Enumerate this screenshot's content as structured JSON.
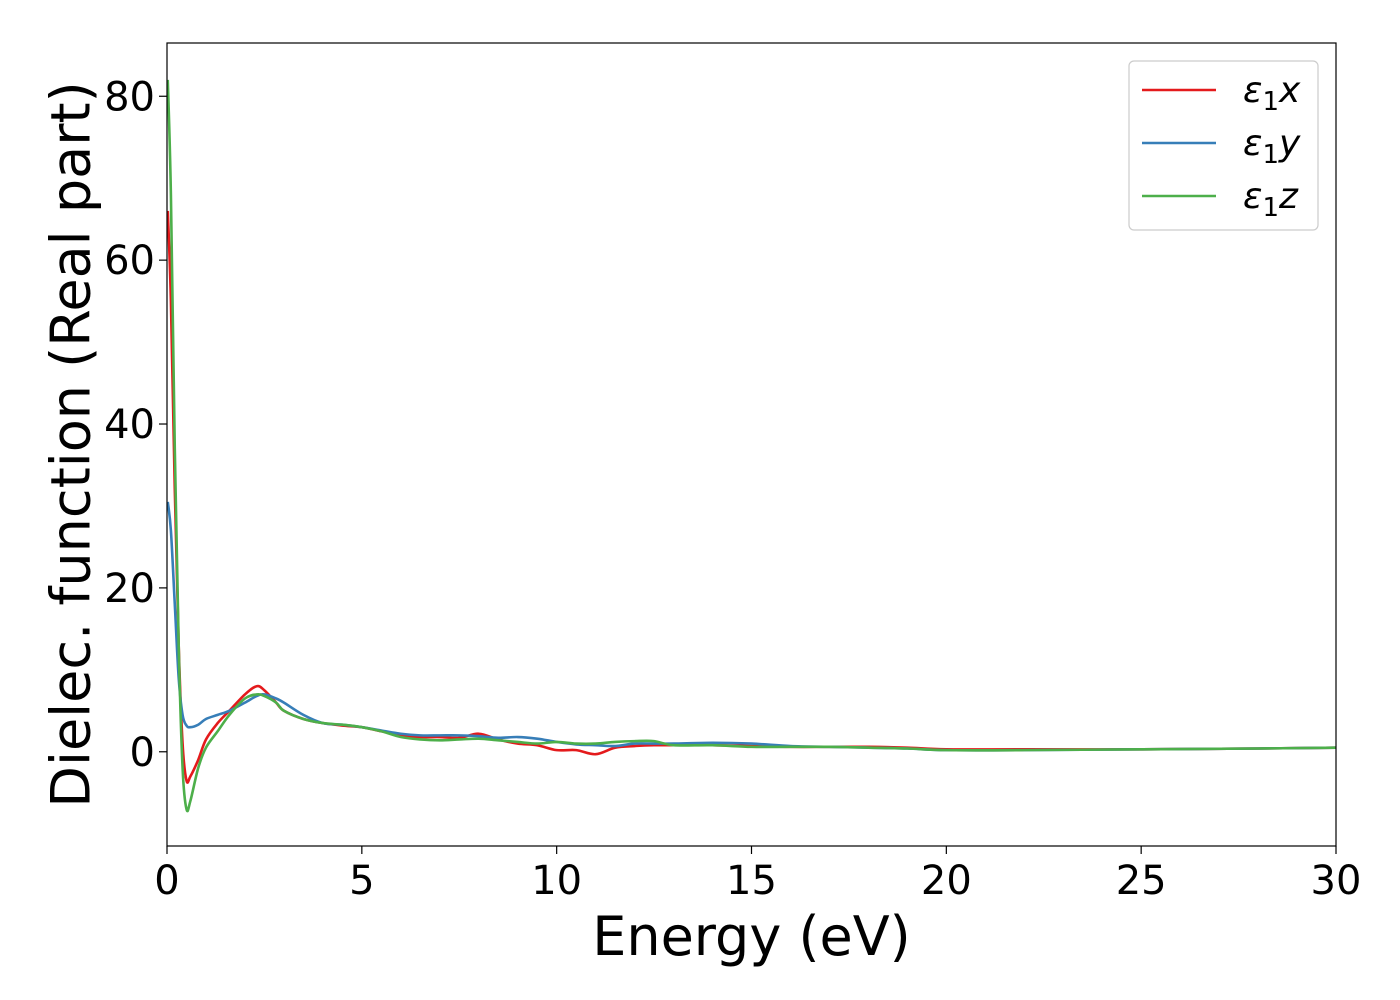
{
  "chart_data": {
    "type": "line",
    "xlabel": "Energy (eV)",
    "ylabel": "Dielec. function (Real part)",
    "xlim": [
      0,
      30
    ],
    "ylim": [
      -11.5,
      86.5
    ],
    "xticks": [
      0,
      5,
      10,
      15,
      20,
      25,
      30
    ],
    "yticks": [
      0,
      20,
      40,
      60,
      80
    ],
    "grid": false,
    "legend_position": "top-right",
    "series": [
      {
        "name": "ε₁x",
        "legend": {
          "symbol": "ε",
          "sub": "1",
          "axis": "x"
        },
        "color": "#e41a1c",
        "x": [
          0.02,
          0.1,
          0.2,
          0.3,
          0.4,
          0.5,
          0.6,
          0.8,
          1.0,
          1.3,
          1.6,
          2.0,
          2.3,
          2.5,
          2.8,
          3.0,
          3.5,
          4.0,
          4.5,
          5.0,
          5.5,
          6.0,
          6.5,
          7.0,
          7.5,
          8.0,
          8.5,
          9.0,
          9.5,
          10.0,
          10.5,
          11.0,
          11.5,
          12.0,
          12.5,
          13.0,
          14.0,
          15.0,
          16.0,
          17.0,
          18.0,
          19.0,
          20.0,
          22.0,
          25.0,
          28.0,
          30.0
        ],
        "y": [
          66,
          55,
          32,
          13,
          1,
          -3.5,
          -3,
          -1,
          1.5,
          3.5,
          5,
          7,
          8,
          7.5,
          6,
          5,
          4,
          3.5,
          3.2,
          3.0,
          2.5,
          2.0,
          1.8,
          1.8,
          1.7,
          2.2,
          1.5,
          1.0,
          0.8,
          0.2,
          0.2,
          -0.3,
          0.5,
          0.7,
          0.8,
          0.8,
          0.8,
          0.7,
          0.6,
          0.6,
          0.6,
          0.5,
          0.3,
          0.3,
          0.3,
          0.4,
          0.5
        ]
      },
      {
        "name": "ε₁y",
        "legend": {
          "symbol": "ε",
          "sub": "1",
          "axis": "y"
        },
        "color": "#377eb8",
        "x": [
          0.02,
          0.1,
          0.2,
          0.3,
          0.4,
          0.5,
          0.6,
          0.8,
          1.0,
          1.3,
          1.6,
          2.0,
          2.3,
          2.5,
          2.8,
          3.0,
          3.5,
          4.0,
          4.5,
          5.0,
          5.5,
          6.0,
          6.5,
          7.0,
          7.5,
          8.0,
          8.5,
          9.0,
          9.5,
          10.0,
          10.5,
          11.0,
          11.5,
          12.0,
          12.5,
          13.0,
          14.0,
          15.0,
          16.0,
          17.0,
          18.0,
          19.0,
          20.0,
          22.0,
          25.0,
          28.0,
          30.0
        ],
        "y": [
          30.5,
          27,
          18,
          9,
          4.5,
          3.2,
          3.0,
          3.3,
          4.0,
          4.5,
          5.0,
          6.0,
          6.8,
          7.0,
          6.5,
          6.0,
          4.5,
          3.5,
          3.3,
          3.0,
          2.6,
          2.2,
          2.0,
          2.0,
          2.0,
          1.9,
          1.7,
          1.8,
          1.6,
          1.2,
          0.9,
          0.8,
          0.7,
          1.0,
          1.0,
          1.0,
          1.1,
          1.0,
          0.7,
          0.6,
          0.5,
          0.4,
          0.2,
          0.2,
          0.3,
          0.4,
          0.5
        ]
      },
      {
        "name": "ε₁z",
        "legend": {
          "symbol": "ε",
          "sub": "1",
          "axis": "z"
        },
        "color": "#4daf4a",
        "x": [
          0.02,
          0.1,
          0.2,
          0.3,
          0.4,
          0.5,
          0.6,
          0.8,
          1.0,
          1.3,
          1.6,
          2.0,
          2.3,
          2.5,
          2.8,
          3.0,
          3.5,
          4.0,
          4.5,
          5.0,
          5.5,
          6.0,
          6.5,
          7.0,
          7.5,
          8.0,
          8.5,
          9.0,
          9.5,
          10.0,
          10.5,
          11.0,
          11.5,
          12.0,
          12.5,
          13.0,
          14.0,
          15.0,
          16.0,
          17.0,
          18.0,
          19.0,
          20.0,
          22.0,
          25.0,
          28.0,
          30.0
        ],
        "y": [
          82,
          68,
          37,
          13,
          -2,
          -7,
          -6,
          -2,
          0.5,
          2.5,
          4.5,
          6.5,
          7.0,
          6.8,
          6.0,
          5.0,
          4.0,
          3.5,
          3.3,
          3.0,
          2.5,
          1.8,
          1.5,
          1.4,
          1.5,
          1.6,
          1.4,
          1.2,
          1.0,
          1.2,
          1.0,
          1.0,
          1.2,
          1.3,
          1.3,
          0.8,
          0.8,
          0.6,
          0.6,
          0.6,
          0.5,
          0.4,
          0.2,
          0.2,
          0.3,
          0.4,
          0.5
        ]
      }
    ]
  }
}
